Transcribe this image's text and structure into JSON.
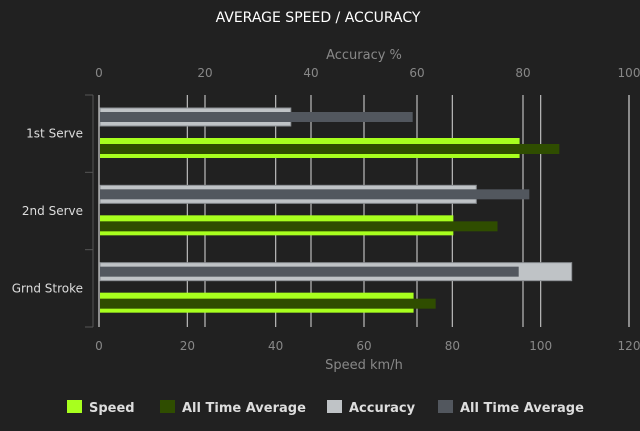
{
  "chart_data": {
    "type": "bar",
    "orientation": "horizontal",
    "title": "AVERAGE SPEED / ACCURACY",
    "categories": [
      "1st Serve",
      "2nd Serve",
      "Grnd Stroke"
    ],
    "top_axis": {
      "label": "Accuracy %",
      "range": [
        0,
        100
      ],
      "ticks": [
        "0",
        "20",
        "40",
        "60",
        "80",
        "100"
      ]
    },
    "bottom_axis": {
      "label": "Speed km/h",
      "range": [
        0,
        120
      ],
      "ticks": [
        "0",
        "20",
        "40",
        "60",
        "80",
        "100",
        "120"
      ]
    },
    "grid": true,
    "legend_position": "bottom",
    "series": [
      {
        "name": "Speed",
        "axis": "bottom",
        "color": "#a8ff1e",
        "values": [
          95,
          80,
          71
        ]
      },
      {
        "name": "All Time Average",
        "axis": "bottom",
        "color": "#2f4d00",
        "values": [
          104,
          90,
          76
        ]
      },
      {
        "name": "Accuracy",
        "axis": "top",
        "color": "#bfc3c6",
        "values": [
          36,
          71,
          89
        ]
      },
      {
        "name": "All Time Average",
        "axis": "top",
        "color": "#52575e",
        "values": [
          59,
          81,
          79
        ]
      }
    ]
  }
}
